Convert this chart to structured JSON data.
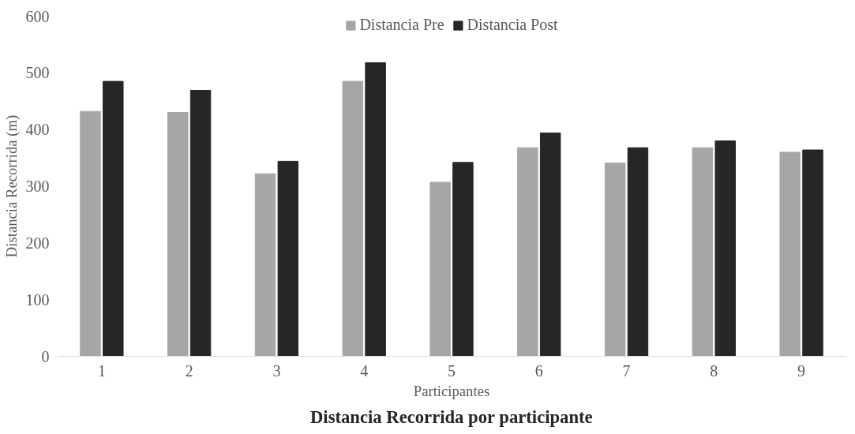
{
  "chart_data": {
    "type": "bar",
    "title": "Distancia Recorrida por participante",
    "xlabel": "Participantes",
    "ylabel": "Distancia Recorrida (m)",
    "categories": [
      "1",
      "2",
      "3",
      "4",
      "5",
      "6",
      "7",
      "8",
      "9"
    ],
    "series": [
      {
        "name": "Distancia Pre",
        "color": "#a6a6a6",
        "values": [
          432,
          430,
          322,
          485,
          307,
          368,
          341,
          368,
          360
        ]
      },
      {
        "name": "Distancia Post",
        "color": "#262626",
        "values": [
          485,
          469,
          344,
          518,
          342,
          394,
          368,
          380,
          364
        ]
      }
    ],
    "ylim": [
      0,
      600
    ],
    "yticks": [
      0,
      100,
      200,
      300,
      400,
      500,
      600
    ],
    "grid": false,
    "legend": "top"
  }
}
